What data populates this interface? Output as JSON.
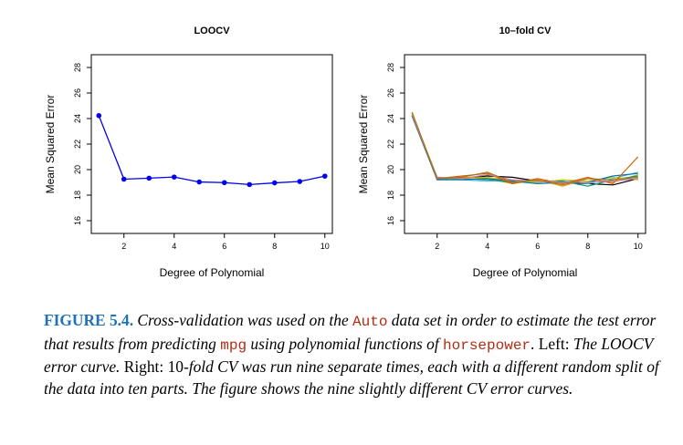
{
  "chart_data": [
    {
      "type": "line",
      "title": "LOOCV",
      "xlabel": "Degree of Polynomial",
      "ylabel": "Mean Squared Error",
      "xlim": [
        0.7,
        10.3
      ],
      "ylim": [
        15,
        29
      ],
      "x_ticks": [
        2,
        4,
        6,
        8,
        10
      ],
      "y_ticks": [
        16,
        18,
        20,
        22,
        24,
        26,
        28
      ],
      "x": [
        1,
        2,
        3,
        4,
        5,
        6,
        7,
        8,
        9,
        10
      ],
      "series": [
        {
          "color": "#0000ee",
          "markers": true,
          "values": [
            24.23,
            19.25,
            19.33,
            19.42,
            19.03,
            18.98,
            18.83,
            18.96,
            19.07,
            19.49
          ]
        }
      ]
    },
    {
      "type": "line",
      "title": "10–fold CV",
      "xlabel": "Degree of Polynomial",
      "ylabel": "Mean Squared Error",
      "xlim": [
        0.7,
        10.3
      ],
      "ylim": [
        15,
        29
      ],
      "x_ticks": [
        2,
        4,
        6,
        8,
        10
      ],
      "y_ticks": [
        16,
        18,
        20,
        22,
        24,
        26,
        28
      ],
      "x": [
        1,
        2,
        3,
        4,
        5,
        6,
        7,
        8,
        9,
        10
      ],
      "series": [
        {
          "color": "#000000",
          "values": [
            24.2,
            19.3,
            19.3,
            19.5,
            19.4,
            19.1,
            19.0,
            18.9,
            18.8,
            19.3
          ]
        },
        {
          "color": "#e69f00",
          "values": [
            24.5,
            19.2,
            19.4,
            19.3,
            18.9,
            19.2,
            18.7,
            19.3,
            19.0,
            19.6
          ]
        },
        {
          "color": "#56b4e9",
          "values": [
            24.3,
            19.4,
            19.2,
            19.1,
            19.2,
            19.0,
            19.2,
            18.9,
            19.3,
            19.8
          ]
        },
        {
          "color": "#009e73",
          "values": [
            24.4,
            19.3,
            19.3,
            19.2,
            19.0,
            19.1,
            19.1,
            18.7,
            19.2,
            19.5
          ]
        },
        {
          "color": "#cccc00",
          "values": [
            24.4,
            19.4,
            19.3,
            19.4,
            19.1,
            19.0,
            19.2,
            19.1,
            19.4,
            19.2
          ]
        },
        {
          "color": "#0072b2",
          "values": [
            24.2,
            19.2,
            19.2,
            19.3,
            19.1,
            18.9,
            19.0,
            19.0,
            19.5,
            19.7
          ]
        },
        {
          "color": "#d55e00",
          "values": [
            24.3,
            19.3,
            19.5,
            19.7,
            18.9,
            19.3,
            18.9,
            19.4,
            18.9,
            21.0
          ]
        },
        {
          "color": "#cc79a7",
          "values": [
            24.3,
            19.4,
            19.3,
            19.6,
            19.2,
            19.1,
            19.0,
            19.0,
            19.1,
            19.3
          ]
        },
        {
          "color": "#a6761d",
          "values": [
            24.5,
            19.3,
            19.4,
            19.8,
            19.0,
            19.2,
            18.8,
            19.3,
            19.2,
            19.4
          ]
        }
      ]
    }
  ],
  "caption": {
    "label": "FIGURE 5.4.",
    "p1": " Cross-validation was used on the ",
    "c1": "Auto",
    "p2": " data set in order to estimate the test error that results from predicting ",
    "c2": "mpg",
    "p3": " using polynomial functions of ",
    "c3": "horsepower",
    "p4": ". ",
    "left_label": "Left:",
    "p5": " The LOOCV error curve. ",
    "right_label": "Right:",
    "p6": " 10-",
    "fold_word": "fold",
    "p7": " CV was run nine separate times, each with a different random split of the data into ten parts. The figure shows the nine slightly different CV error curves."
  }
}
